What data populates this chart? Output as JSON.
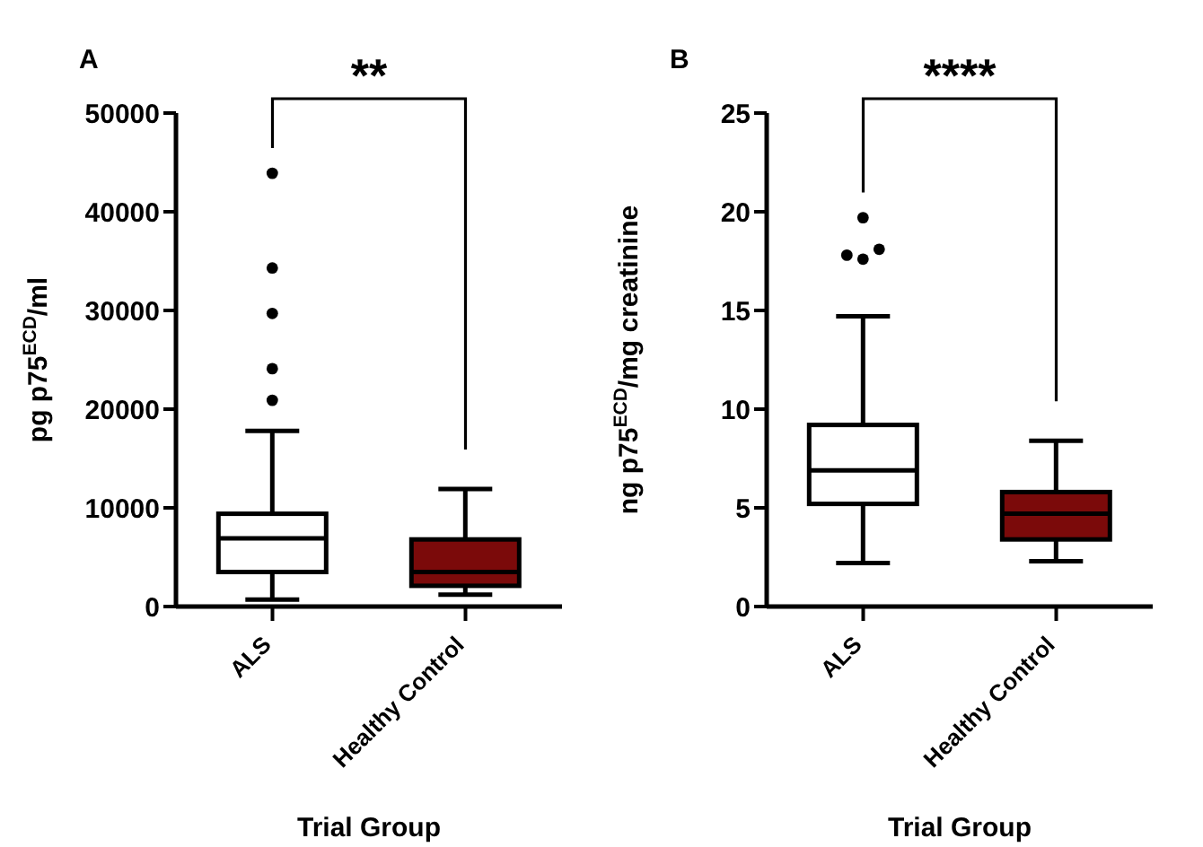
{
  "chart_data": [
    {
      "type": "box",
      "title": "A",
      "xlabel": "Trial Group",
      "ylabel": "pg p75$^{ECD}$/ml",
      "categories": [
        "ALS",
        "Healthy Control"
      ],
      "colors": [
        "#ffffff",
        "#7b0a0a"
      ],
      "boxes": [
        {
          "low": 700,
          "q1": 3500,
          "median": 6900,
          "q3": 9400,
          "high": 17800,
          "outliers": [
            20900,
            24100,
            29700,
            34300,
            43900
          ]
        },
        {
          "low": 1200,
          "q1": 2100,
          "median": 3500,
          "q3": 6800,
          "high": 11900
        }
      ],
      "ylim": [
        0,
        50000
      ],
      "yticks": [
        0,
        10000,
        20000,
        30000,
        40000,
        50000
      ],
      "annotations": [
        "**"
      ]
    },
    {
      "type": "box",
      "title": "B",
      "xlabel": "Trial Group",
      "ylabel": "ng p75$^{ECD}$/mg creatinine",
      "categories": [
        "ALS",
        "Healthy Control"
      ],
      "colors": [
        "#ffffff",
        "#7b0a0a"
      ],
      "boxes": [
        {
          "low": 2.2,
          "q1": 5.2,
          "median": 6.9,
          "q3": 9.2,
          "high": 14.7,
          "outliers": [
            17.6,
            18.1,
            17.8,
            19.7
          ]
        },
        {
          "low": 2.3,
          "q1": 3.4,
          "median": 4.7,
          "q3": 5.8,
          "high": 8.4
        }
      ],
      "ylim": [
        0,
        25
      ],
      "yticks": [
        0,
        5,
        10,
        15,
        20,
        25
      ],
      "annotations": [
        "****"
      ]
    }
  ]
}
